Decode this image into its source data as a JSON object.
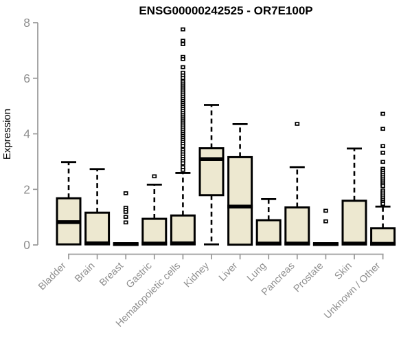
{
  "chart_data": {
    "type": "boxplot",
    "title": "ENSG00000242525 - OR7E100P",
    "ylabel": "Expression",
    "xlabel": "",
    "ylim": [
      0,
      8
    ],
    "y_ticks": [
      "0",
      "2",
      "4",
      "6",
      "8"
    ],
    "grid": false,
    "legend": null,
    "categories": [
      "Bladder",
      "Brain",
      "Breast",
      "Gastric",
      "Hematopoietic cells",
      "Kidney",
      "Liver",
      "Lung",
      "Pancreas",
      "Prostate",
      "Skin",
      "Unknown / Other"
    ],
    "series": [
      {
        "name": "Bladder",
        "min": 0.02,
        "q1": 0.02,
        "median": 0.82,
        "q3": 1.68,
        "max": 2.98,
        "outliers": []
      },
      {
        "name": "Brain",
        "min": 0.02,
        "q1": 0.02,
        "median": 0.06,
        "q3": 1.16,
        "max": 2.73,
        "outliers": []
      },
      {
        "name": "Breast",
        "min": 0.01,
        "q1": 0.01,
        "median": 0.03,
        "q3": 0.04,
        "max": 0.04,
        "outliers": [
          1.86,
          1.34,
          1.26,
          1.19,
          1.01,
          0.81
        ]
      },
      {
        "name": "Gastric",
        "min": 0.02,
        "q1": 0.02,
        "median": 0.05,
        "q3": 0.94,
        "max": 2.17,
        "outliers": [
          2.47
        ]
      },
      {
        "name": "Hematopoietic cells",
        "min": 0.02,
        "q1": 0.02,
        "median": 0.06,
        "q3": 1.06,
        "max": 2.59,
        "outliers": [
          7.76,
          7.35,
          7.23,
          6.77,
          6.69,
          6.4,
          6.2,
          6.1,
          6.01,
          5.88,
          5.81,
          5.74,
          5.67,
          5.6,
          5.53,
          5.46,
          5.39,
          5.32,
          5.25,
          5.18,
          5.11,
          5.04,
          4.97,
          4.9,
          4.83,
          4.76,
          4.69,
          4.62,
          4.55,
          4.48,
          4.41,
          4.34,
          4.27,
          4.2,
          4.13,
          4.06,
          3.99,
          3.92,
          3.85,
          3.78,
          3.71,
          3.64,
          3.56,
          3.42,
          3.34,
          3.26,
          3.18,
          3.1,
          3.02,
          2.94,
          2.8,
          2.7
        ]
      },
      {
        "name": "Kidney",
        "min": 0.02,
        "q1": 1.79,
        "median": 3.09,
        "q3": 3.48,
        "max": 5.04,
        "outliers": []
      },
      {
        "name": "Liver",
        "min": 0.01,
        "q1": 0.01,
        "median": 1.38,
        "q3": 3.16,
        "max": 4.35,
        "outliers": []
      },
      {
        "name": "Lung",
        "min": 0.02,
        "q1": 0.02,
        "median": 0.05,
        "q3": 0.89,
        "max": 1.65,
        "outliers": []
      },
      {
        "name": "Pancreas",
        "min": 0.02,
        "q1": 0.02,
        "median": 0.05,
        "q3": 1.35,
        "max": 2.8,
        "outliers": [
          4.36
        ]
      },
      {
        "name": "Prostate",
        "min": 0.01,
        "q1": 0.01,
        "median": 0.03,
        "q3": 0.04,
        "max": 0.04,
        "outliers": [
          1.23,
          0.85
        ]
      },
      {
        "name": "Skin",
        "min": 0.02,
        "q1": 0.02,
        "median": 0.05,
        "q3": 1.59,
        "max": 3.47,
        "outliers": []
      },
      {
        "name": "Unknown / Other",
        "min": 0.02,
        "q1": 0.02,
        "median": 0.04,
        "q3": 0.6,
        "max": 1.38,
        "outliers": [
          4.72,
          4.18,
          3.56,
          3.32,
          2.99,
          2.74,
          2.67,
          2.6,
          2.53,
          2.46,
          2.39,
          2.32,
          2.25,
          2.18,
          2.12,
          1.96,
          1.89,
          1.82,
          1.75,
          1.68,
          1.61,
          1.54,
          1.48
        ]
      }
    ],
    "colors": {
      "box_fill": "#EDE8D0",
      "box_stroke": "#000000",
      "median": "#000000",
      "whisker": "#000000",
      "outlier_stroke": "#000000",
      "outlier_fill": "#ffffff",
      "axis_line": "#9C9C9C",
      "tick_label": "#8E8E8E",
      "title": "#000000"
    }
  }
}
